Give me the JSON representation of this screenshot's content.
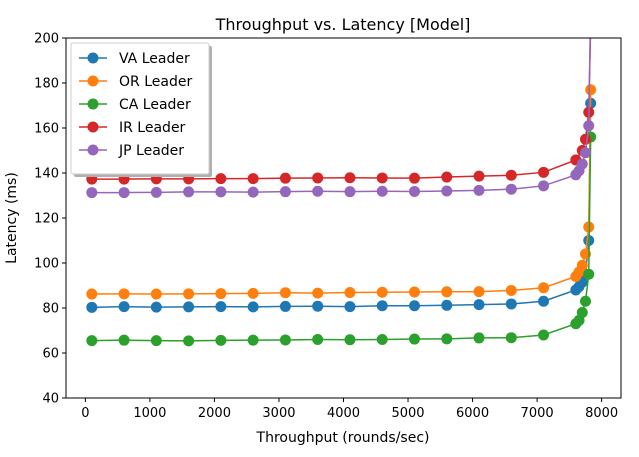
{
  "chart_data": {
    "type": "line",
    "title": "Throughput vs. Latency [Model]",
    "xlabel": "Throughput (rounds/sec)",
    "ylabel": "Latency (ms)",
    "xlim": [
      -300,
      8300
    ],
    "ylim": [
      40,
      200
    ],
    "xticks": [
      0,
      1000,
      2000,
      3000,
      4000,
      5000,
      6000,
      7000,
      8000
    ],
    "yticks": [
      40,
      60,
      80,
      100,
      120,
      140,
      160,
      180,
      200
    ],
    "grid": false,
    "legend_position": "top-left",
    "series": [
      {
        "name": "VA Leader",
        "color": "#1f77b4",
        "x": [
          100,
          600,
          1100,
          1600,
          2100,
          2600,
          3100,
          3600,
          4100,
          4600,
          5100,
          5600,
          6100,
          6600,
          7100,
          7600,
          7650,
          7700,
          7750,
          7800,
          7830
        ],
        "y": [
          80.3,
          80.6,
          80.4,
          80.5,
          80.6,
          80.5,
          80.7,
          80.8,
          80.6,
          81.0,
          81.0,
          81.2,
          81.5,
          81.8,
          83.0,
          88.0,
          89.5,
          91.5,
          95.0,
          110.0,
          171.0
        ]
      },
      {
        "name": "OR Leader",
        "color": "#ff7f0e",
        "x": [
          100,
          600,
          1100,
          1600,
          2100,
          2600,
          3100,
          3600,
          4100,
          4600,
          5100,
          5600,
          6100,
          6600,
          7100,
          7600,
          7650,
          7700,
          7750,
          7800,
          7830
        ],
        "y": [
          86.2,
          86.3,
          86.2,
          86.3,
          86.4,
          86.5,
          86.8,
          86.6,
          86.9,
          87.0,
          87.1,
          87.2,
          87.3,
          87.8,
          89.0,
          94.0,
          96.0,
          99.0,
          104.0,
          116.0,
          177.0
        ]
      },
      {
        "name": "CA Leader",
        "color": "#2ca02c",
        "x": [
          100,
          600,
          1100,
          1600,
          2100,
          2600,
          3100,
          3600,
          4100,
          4600,
          5100,
          5600,
          6100,
          6600,
          7100,
          7600,
          7650,
          7700,
          7750,
          7800,
          7830
        ],
        "y": [
          65.5,
          65.7,
          65.5,
          65.4,
          65.6,
          65.7,
          65.8,
          66.0,
          65.9,
          66.0,
          66.2,
          66.3,
          66.7,
          66.8,
          68.0,
          73.0,
          74.5,
          78.0,
          83.0,
          95.0,
          156.0
        ]
      },
      {
        "name": "IR Leader",
        "color": "#d62728",
        "x": [
          100,
          600,
          1100,
          1600,
          2100,
          2600,
          3100,
          3600,
          4100,
          4600,
          5100,
          5600,
          6100,
          6600,
          7100,
          7600,
          7700,
          7750,
          7800,
          7830
        ],
        "y": [
          137.3,
          137.3,
          137.4,
          137.4,
          137.5,
          137.5,
          137.7,
          137.8,
          137.9,
          137.8,
          137.7,
          138.2,
          138.6,
          139.0,
          140.3,
          145.8,
          150.0,
          155.0,
          167.0,
          205.0
        ]
      },
      {
        "name": "JP Leader",
        "color": "#9467bd",
        "x": [
          100,
          600,
          1100,
          1600,
          2100,
          2600,
          3100,
          3600,
          4100,
          4600,
          5100,
          5600,
          6100,
          6600,
          7100,
          7600,
          7650,
          7700,
          7750,
          7800,
          7830
        ],
        "y": [
          131.3,
          131.3,
          131.4,
          131.6,
          131.6,
          131.5,
          131.7,
          131.9,
          131.7,
          131.9,
          131.8,
          132.0,
          132.3,
          132.8,
          134.3,
          139.2,
          141.0,
          144.0,
          149.0,
          161.0,
          215.0
        ]
      }
    ]
  }
}
